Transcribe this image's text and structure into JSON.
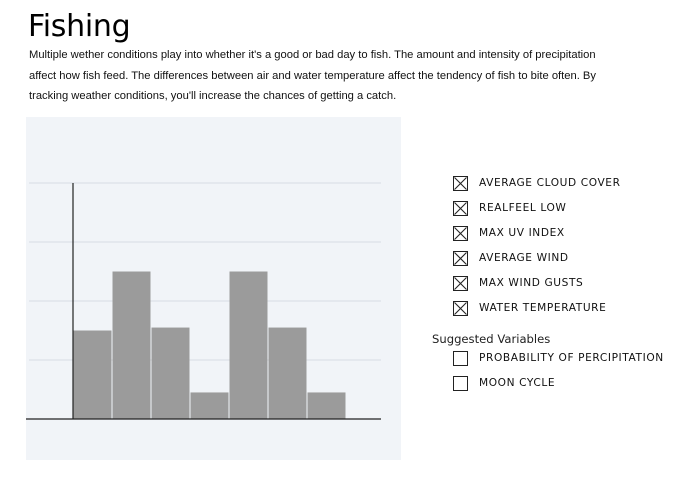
{
  "page": {
    "title": "Fishing",
    "description": "Multiple wether conditions play into whether it's a good or bad day to fish. The amount and intensity of precipitation affect how fish feed. The differences between air and water temperature affect the tendency of fish to bite often. By tracking weather conditions, you'll increase the chances of getting a catch."
  },
  "chart_data": {
    "type": "bar",
    "categories": [
      "",
      "",
      "",
      "",
      "",
      "",
      ""
    ],
    "values": [
      1.5,
      2.5,
      1.55,
      0.45,
      2.5,
      1.55,
      0.45
    ],
    "ylim": [
      0,
      4
    ],
    "grid": true,
    "colors": {
      "bar": "#9b9b9b",
      "grid": "#d7dce3",
      "axis": "#222222",
      "background": "#f1f4f8"
    }
  },
  "legend": {
    "items": [
      {
        "label": "AVERAGE CLOUD COVER",
        "checked": true
      },
      {
        "label": "REALFEEL LOW",
        "checked": true
      },
      {
        "label": "MAX UV INDEX",
        "checked": true
      },
      {
        "label": "AVERAGE WIND",
        "checked": true
      },
      {
        "label": "MAX WIND GUSTS",
        "checked": true
      },
      {
        "label": "WATER TEMPERATURE",
        "checked": true
      }
    ],
    "suggested_title": "Suggested Variables",
    "suggested_items": [
      {
        "label": "PROBABILITY OF PERCIPITATION",
        "checked": false
      },
      {
        "label": "MOON CYCLE",
        "checked": false
      }
    ]
  }
}
